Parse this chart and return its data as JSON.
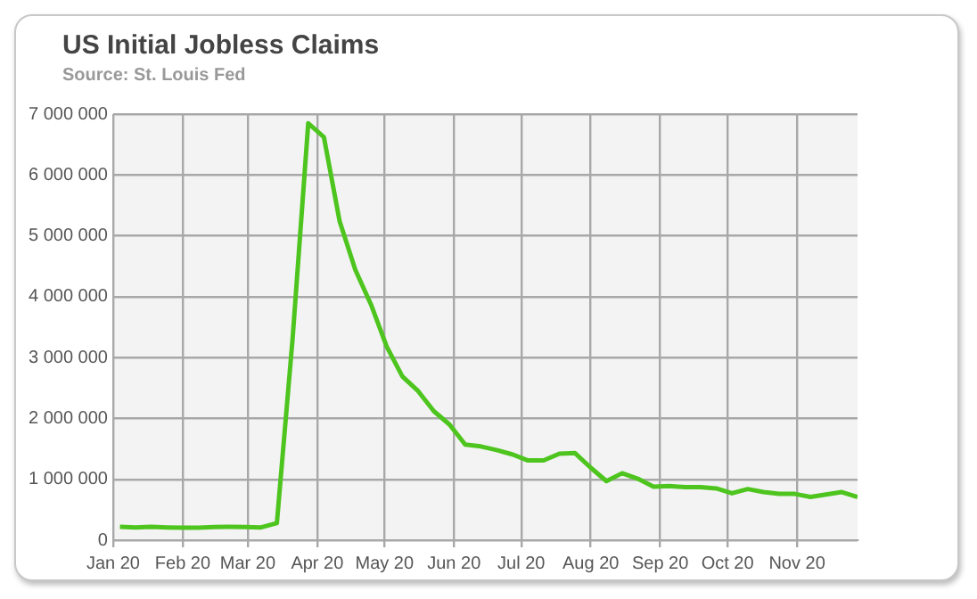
{
  "chart_data": {
    "type": "line",
    "title": "US Initial Jobless Claims",
    "subtitle": "Source: St. Louis Fed",
    "x": [
      "2020-01-04",
      "2020-01-11",
      "2020-01-18",
      "2020-01-25",
      "2020-02-01",
      "2020-02-08",
      "2020-02-15",
      "2020-02-22",
      "2020-02-29",
      "2020-03-07",
      "2020-03-14",
      "2020-03-21",
      "2020-03-28",
      "2020-04-04",
      "2020-04-11",
      "2020-04-18",
      "2020-04-25",
      "2020-05-02",
      "2020-05-09",
      "2020-05-16",
      "2020-05-23",
      "2020-05-30",
      "2020-06-06",
      "2020-06-13",
      "2020-06-20",
      "2020-06-27",
      "2020-07-04",
      "2020-07-11",
      "2020-07-18",
      "2020-07-25",
      "2020-08-01",
      "2020-08-08",
      "2020-08-15",
      "2020-08-22",
      "2020-08-29",
      "2020-09-05",
      "2020-09-12",
      "2020-09-19",
      "2020-09-26",
      "2020-10-03",
      "2020-10-10",
      "2020-10-17",
      "2020-10-24",
      "2020-10-31",
      "2020-11-07",
      "2020-11-14",
      "2020-11-21",
      "2020-11-28"
    ],
    "series": [
      {
        "color": "#4ec51e",
        "values": [
          220000,
          210000,
          220000,
          210000,
          205000,
          205000,
          215000,
          220000,
          215000,
          210000,
          280000,
          3300000,
          6850000,
          6620000,
          5240000,
          4440000,
          3870000,
          3180000,
          2690000,
          2450000,
          2120000,
          1900000,
          1570000,
          1540000,
          1480000,
          1410000,
          1310000,
          1310000,
          1420000,
          1430000,
          1190000,
          970000,
          1100000,
          1010000,
          880000,
          890000,
          870000,
          870000,
          850000,
          770000,
          840000,
          790000,
          760000,
          760000,
          710000,
          750000,
          790000,
          710000
        ]
      }
    ],
    "xlim": [
      "2020-01-01",
      "2020-11-28"
    ],
    "xticks": [
      {
        "value": "2020-01-01",
        "label": "Jan 20"
      },
      {
        "value": "2020-02-01",
        "label": "Feb 20"
      },
      {
        "value": "2020-03-01",
        "label": "Mar 20"
      },
      {
        "value": "2020-04-01",
        "label": "Apr 20"
      },
      {
        "value": "2020-05-01",
        "label": "May 20"
      },
      {
        "value": "2020-06-01",
        "label": "Jun 20"
      },
      {
        "value": "2020-07-01",
        "label": "Jul 20"
      },
      {
        "value": "2020-08-01",
        "label": "Aug 20"
      },
      {
        "value": "2020-09-01",
        "label": "Sep 20"
      },
      {
        "value": "2020-10-01",
        "label": "Oct 20"
      },
      {
        "value": "2020-11-01",
        "label": "Nov 20"
      }
    ],
    "ylim": [
      0,
      7000000
    ],
    "yticks": [
      0,
      {
        "value": 1000000,
        "label": "1 000 000"
      },
      {
        "value": 2000000,
        "label": "2 000 000"
      },
      {
        "value": 3000000,
        "label": "3 000 000"
      },
      {
        "value": 4000000,
        "label": "4 000 000"
      },
      {
        "value": 5000000,
        "label": "5 000 000"
      },
      {
        "value": 6000000,
        "label": "6 000 000"
      },
      {
        "value": 7000000,
        "label": "7 000 000"
      }
    ],
    "grid": true,
    "legend": false,
    "marker": "none",
    "line_style": "solid"
  }
}
